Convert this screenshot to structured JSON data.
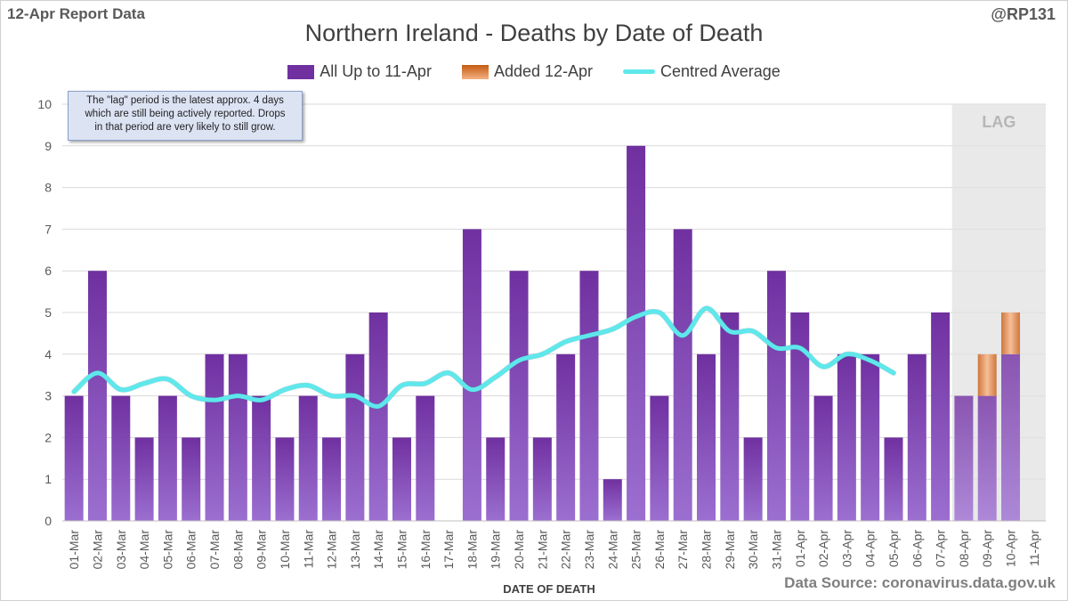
{
  "header": {
    "report_label": "12-Apr Report Data",
    "handle": "@RP131",
    "title": "Northern Ireland - Deaths by Date of Death"
  },
  "note": {
    "line1": "The \"lag\" period is the latest approx. 4 days",
    "line2": "which are still being actively reported. Drops",
    "line3": "in that period are very likely to still grow."
  },
  "lag_label": "LAG",
  "source": "Data Source: coronavirus.data.gov.uk",
  "colors": {
    "primary_bar": "#7030a0",
    "primary_bar_light": "#9b6fd0",
    "added_bar": "#c55a11",
    "added_bar_light": "#f4b183",
    "average_line": "#5ee8ec",
    "lag_shade": "#e4e4e4",
    "grid": "#d9d9d9"
  },
  "chart_data": {
    "type": "bar",
    "xlabel": "DATE OF DEATH",
    "ylabel": "",
    "ylim": [
      0,
      10
    ],
    "yticks": [
      0,
      1,
      2,
      3,
      4,
      5,
      6,
      7,
      8,
      9,
      10
    ],
    "grid": true,
    "legend_position": "top",
    "stacked": true,
    "lag_start_category": "08-Apr",
    "categories": [
      "01-Mar",
      "02-Mar",
      "03-Mar",
      "04-Mar",
      "05-Mar",
      "06-Mar",
      "07-Mar",
      "08-Mar",
      "09-Mar",
      "10-Mar",
      "11-Mar",
      "12-Mar",
      "13-Mar",
      "14-Mar",
      "15-Mar",
      "16-Mar",
      "17-Mar",
      "18-Mar",
      "19-Mar",
      "20-Mar",
      "21-Mar",
      "22-Mar",
      "23-Mar",
      "24-Mar",
      "25-Mar",
      "26-Mar",
      "27-Mar",
      "28-Mar",
      "29-Mar",
      "30-Mar",
      "31-Mar",
      "01-Apr",
      "02-Apr",
      "03-Apr",
      "04-Apr",
      "05-Apr",
      "06-Apr",
      "07-Apr",
      "08-Apr",
      "09-Apr",
      "10-Apr",
      "11-Apr"
    ],
    "series": [
      {
        "name": "All Up to 11-Apr",
        "kind": "bar",
        "values": [
          3,
          6,
          3,
          2,
          3,
          2,
          4,
          4,
          3,
          2,
          3,
          2,
          4,
          5,
          2,
          3,
          0,
          7,
          2,
          6,
          2,
          4,
          6,
          1,
          9,
          3,
          7,
          4,
          5,
          2,
          6,
          5,
          3,
          4,
          4,
          2,
          4,
          5,
          3,
          3,
          4,
          0
        ]
      },
      {
        "name": "Added 12-Apr",
        "kind": "bar",
        "values": [
          0,
          0,
          0,
          0,
          0,
          0,
          0,
          0,
          0,
          0,
          0,
          0,
          0,
          0,
          0,
          0,
          0,
          0,
          0,
          0,
          0,
          0,
          0,
          0,
          0,
          0,
          0,
          0,
          0,
          0,
          0,
          0,
          0,
          0,
          0,
          0,
          0,
          0,
          0,
          1,
          1,
          0
        ]
      },
      {
        "name": "Centred Average",
        "kind": "line",
        "values": [
          3.1,
          3.55,
          3.15,
          3.3,
          3.4,
          3.0,
          2.9,
          3.0,
          2.9,
          3.15,
          3.25,
          3.0,
          3.0,
          2.75,
          3.25,
          3.3,
          3.55,
          3.15,
          3.45,
          3.85,
          4.0,
          4.3,
          4.45,
          4.6,
          4.9,
          5.0,
          4.45,
          5.1,
          4.55,
          4.55,
          4.15,
          4.15,
          3.7,
          4.0,
          3.85,
          3.55,
          null,
          null,
          null,
          null,
          null,
          null
        ]
      }
    ]
  }
}
